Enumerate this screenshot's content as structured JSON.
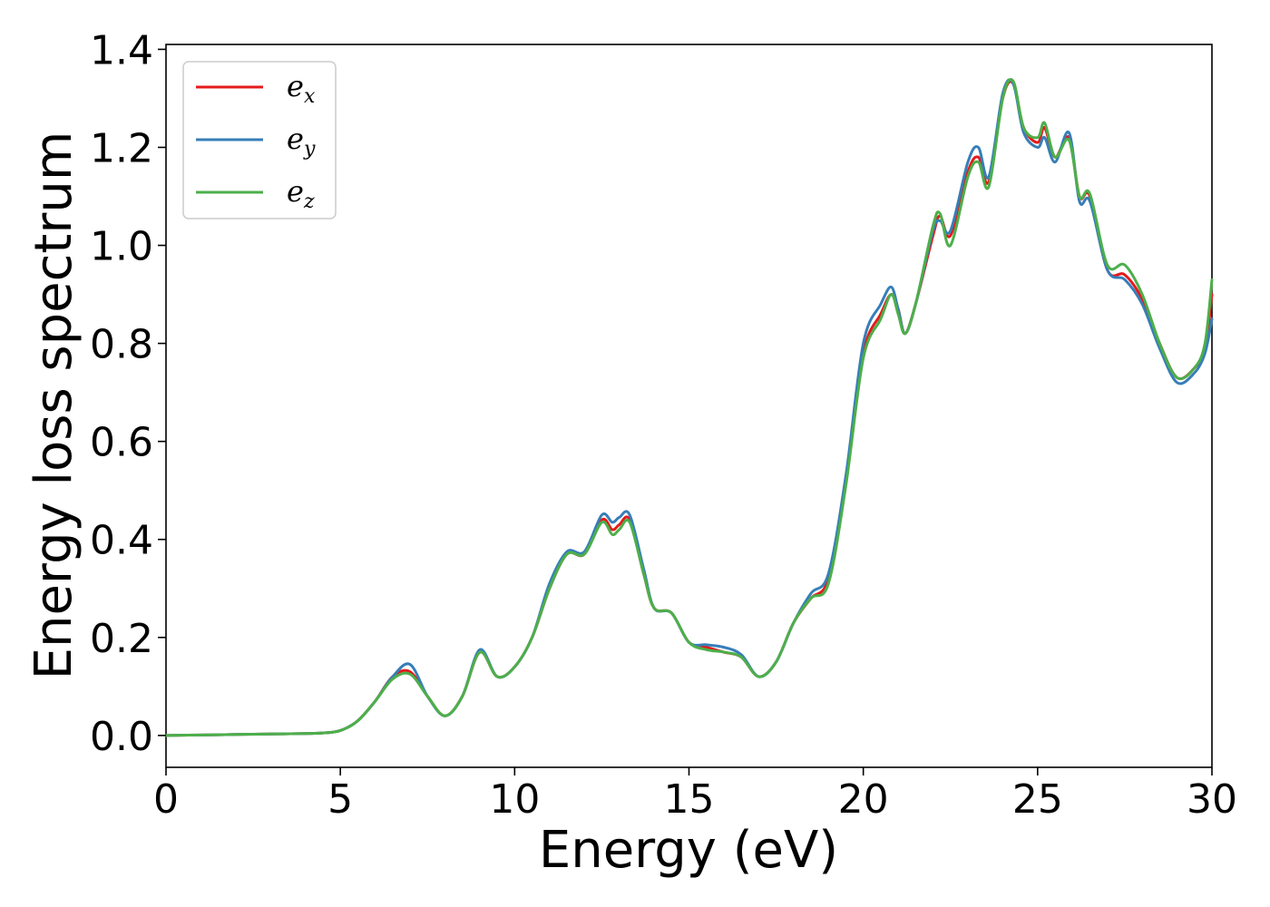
{
  "chart_data": {
    "type": "line",
    "title": "",
    "xlabel": "Energy (eV)",
    "ylabel": "Energy loss spectrum",
    "xlim": [
      0,
      30
    ],
    "ylim": [
      -0.065,
      1.41
    ],
    "xticks": [
      0,
      5,
      10,
      15,
      20,
      25,
      30
    ],
    "xtick_labels": [
      "0",
      "5",
      "10",
      "15",
      "20",
      "25",
      "30"
    ],
    "yticks": [
      0.0,
      0.2,
      0.4,
      0.6,
      0.8,
      1.0,
      1.2,
      1.4
    ],
    "ytick_labels": [
      "0.0",
      "0.2",
      "0.4",
      "0.6",
      "0.8",
      "1.0",
      "1.2",
      "1.4"
    ],
    "grid": false,
    "legend_placement": "upper-left",
    "series": [
      {
        "name": "e_x",
        "label_base": "e",
        "label_sub": "x",
        "color": "#e41a1c",
        "x": [
          0,
          1,
          2,
          3,
          4,
          4.5,
          5,
          5.5,
          6,
          6.5,
          7,
          7.5,
          8,
          8.5,
          9,
          9.5,
          10,
          10.5,
          11,
          11.5,
          12,
          12.5,
          12.8,
          13,
          13.3,
          13.7,
          14,
          14.5,
          15,
          15.5,
          16,
          16.5,
          17,
          17.5,
          18,
          18.5,
          19,
          19.5,
          20,
          20.5,
          20.8,
          21,
          21.2,
          21.5,
          22,
          22.2,
          22.5,
          23,
          23.3,
          23.6,
          24,
          24.3,
          24.6,
          25,
          25.2,
          25.5,
          25.9,
          26.2,
          26.5,
          27,
          27.5,
          28,
          28.5,
          29,
          29.5,
          29.8,
          30
        ],
        "y": [
          0,
          0.001,
          0.002,
          0.003,
          0.004,
          0.005,
          0.01,
          0.03,
          0.07,
          0.12,
          0.13,
          0.08,
          0.04,
          0.08,
          0.17,
          0.12,
          0.14,
          0.2,
          0.3,
          0.37,
          0.37,
          0.44,
          0.42,
          0.43,
          0.44,
          0.33,
          0.26,
          0.25,
          0.19,
          0.18,
          0.17,
          0.16,
          0.12,
          0.15,
          0.23,
          0.28,
          0.32,
          0.52,
          0.78,
          0.86,
          0.9,
          0.87,
          0.82,
          0.88,
          1.02,
          1.06,
          1.02,
          1.15,
          1.18,
          1.13,
          1.3,
          1.33,
          1.24,
          1.21,
          1.24,
          1.18,
          1.22,
          1.1,
          1.1,
          0.95,
          0.94,
          0.89,
          0.8,
          0.73,
          0.75,
          0.79,
          0.9
        ]
      },
      {
        "name": "e_y",
        "label_base": "e",
        "label_sub": "y",
        "color": "#377eb8",
        "x": [
          0,
          1,
          2,
          3,
          4,
          4.5,
          5,
          5.5,
          6,
          6.5,
          7,
          7.5,
          8,
          8.5,
          9,
          9.5,
          10,
          10.5,
          11,
          11.5,
          12,
          12.5,
          12.8,
          13,
          13.3,
          13.7,
          14,
          14.5,
          15,
          15.5,
          16,
          16.5,
          17,
          17.5,
          18,
          18.5,
          19,
          19.5,
          20,
          20.5,
          20.8,
          21,
          21.2,
          21.5,
          22,
          22.2,
          22.5,
          23,
          23.3,
          23.6,
          24,
          24.3,
          24.6,
          25,
          25.2,
          25.5,
          25.9,
          26.2,
          26.5,
          27,
          27.5,
          28,
          28.5,
          29,
          29.5,
          29.8,
          30
        ],
        "y": [
          0,
          0.001,
          0.002,
          0.003,
          0.004,
          0.005,
          0.01,
          0.03,
          0.07,
          0.12,
          0.145,
          0.08,
          0.04,
          0.08,
          0.175,
          0.12,
          0.14,
          0.2,
          0.31,
          0.375,
          0.375,
          0.45,
          0.435,
          0.445,
          0.45,
          0.34,
          0.26,
          0.25,
          0.19,
          0.185,
          0.18,
          0.165,
          0.12,
          0.15,
          0.23,
          0.29,
          0.33,
          0.53,
          0.8,
          0.88,
          0.915,
          0.87,
          0.82,
          0.88,
          1.03,
          1.05,
          1.03,
          1.17,
          1.2,
          1.14,
          1.31,
          1.33,
          1.23,
          1.2,
          1.22,
          1.17,
          1.23,
          1.09,
          1.09,
          0.95,
          0.93,
          0.88,
          0.79,
          0.72,
          0.74,
          0.78,
          0.85
        ]
      },
      {
        "name": "e_z",
        "label_base": "e",
        "label_sub": "z",
        "color": "#4daf4a",
        "x": [
          0,
          1,
          2,
          3,
          4,
          4.5,
          5,
          5.5,
          6,
          6.5,
          7,
          7.5,
          8,
          8.5,
          9,
          9.5,
          10,
          10.5,
          11,
          11.5,
          12,
          12.5,
          12.8,
          13,
          13.3,
          13.7,
          14,
          14.5,
          15,
          15.5,
          16,
          16.5,
          17,
          17.5,
          18,
          18.5,
          19,
          19.5,
          20,
          20.5,
          20.8,
          21,
          21.2,
          21.5,
          22,
          22.2,
          22.5,
          23,
          23.3,
          23.6,
          24,
          24.3,
          24.6,
          25,
          25.2,
          25.5,
          25.9,
          26.2,
          26.5,
          27,
          27.5,
          28,
          28.5,
          29,
          29.5,
          29.8,
          30
        ],
        "y": [
          0,
          0.001,
          0.002,
          0.003,
          0.004,
          0.005,
          0.01,
          0.03,
          0.07,
          0.115,
          0.125,
          0.08,
          0.04,
          0.08,
          0.17,
          0.12,
          0.14,
          0.2,
          0.3,
          0.37,
          0.37,
          0.435,
          0.41,
          0.42,
          0.435,
          0.33,
          0.26,
          0.25,
          0.19,
          0.175,
          0.17,
          0.16,
          0.12,
          0.15,
          0.23,
          0.28,
          0.31,
          0.51,
          0.77,
          0.85,
          0.9,
          0.86,
          0.82,
          0.88,
          1.04,
          1.065,
          1.0,
          1.14,
          1.17,
          1.12,
          1.3,
          1.335,
          1.24,
          1.22,
          1.25,
          1.18,
          1.215,
          1.1,
          1.105,
          0.96,
          0.96,
          0.9,
          0.8,
          0.73,
          0.75,
          0.8,
          0.93
        ]
      }
    ]
  }
}
